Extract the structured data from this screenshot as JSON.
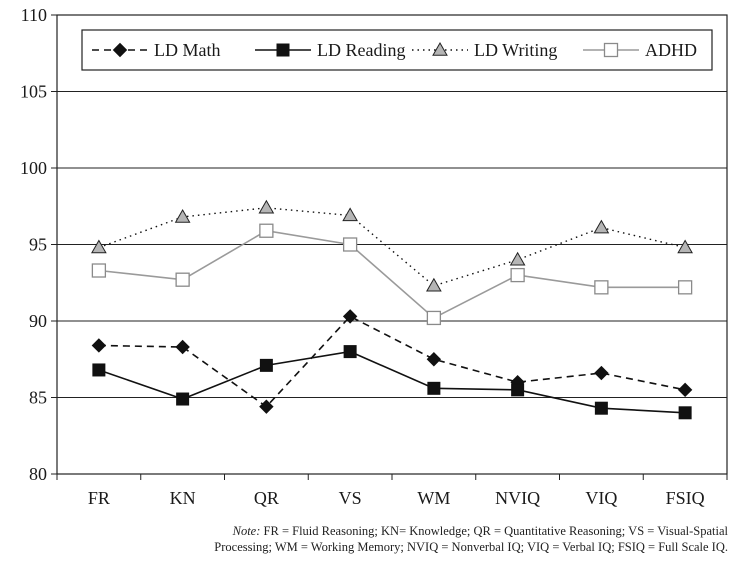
{
  "chart_data": {
    "type": "line",
    "title": "",
    "xlabel": "",
    "ylabel": "",
    "ylim": [
      80,
      110
    ],
    "yticks": [
      80,
      85,
      90,
      95,
      100,
      105,
      110
    ],
    "grid": "horizontal",
    "legend_placement": "top",
    "categories": [
      "FR",
      "KN",
      "QR",
      "VS",
      "WM",
      "NVIQ",
      "VIQ",
      "FSIQ"
    ],
    "series": [
      {
        "name": "LD Math",
        "values": [
          88.4,
          88.3,
          84.4,
          90.3,
          87.5,
          86.0,
          86.6,
          85.5
        ],
        "color": "#111111",
        "marker": "diamond",
        "dash": "dashed"
      },
      {
        "name": "LD Reading",
        "values": [
          86.8,
          84.9,
          87.1,
          88.0,
          85.6,
          85.5,
          84.3,
          84.0
        ],
        "color": "#111111",
        "marker": "square-filled",
        "dash": "solid"
      },
      {
        "name": "LD Writing",
        "values": [
          94.8,
          96.8,
          97.4,
          96.9,
          92.3,
          94.0,
          96.1,
          94.8
        ],
        "color": "#111111",
        "marker": "triangle",
        "dash": "dotted"
      },
      {
        "name": "ADHD",
        "values": [
          93.3,
          92.7,
          95.9,
          95.0,
          90.2,
          93.0,
          92.2,
          92.2
        ],
        "color": "#9a9a9a",
        "marker": "square-open",
        "dash": "solid"
      }
    ]
  },
  "note": {
    "label": "Note:",
    "line1": "FR = Fluid Reasoning; KN= Knowledge; QR = Quantitative Reasoning; VS = Visual-Spatial",
    "line2": "Processing; WM = Working Memory; NVIQ = Nonverbal IQ; VIQ = Verbal IQ; FSIQ = Full Scale IQ."
  }
}
